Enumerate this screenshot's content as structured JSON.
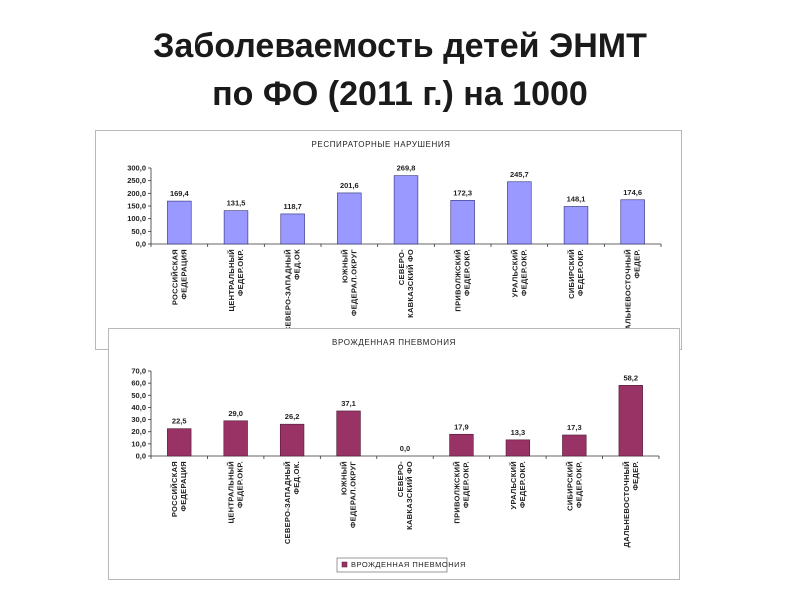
{
  "slide": {
    "title_line1": "Заболеваемость детей ЭНМТ",
    "title_line2": "по ФО  (2011 г.) на 1000"
  },
  "chart_data": [
    {
      "type": "bar",
      "title": "РЕСПИРАТОРНЫЕ НАРУШЕНИЯ",
      "categories": [
        [
          "РОССИЙСКАЯ",
          "ФЕДЕРАЦИЯ"
        ],
        [
          "ЦЕНТРАЛЬНЫЙ",
          "ФЕДЕР.ОКР."
        ],
        [
          "СЕВЕРО-ЗАПАДНЫЙ",
          "ФЕД.ОК"
        ],
        [
          "ЮЖНЫЙ",
          "ФЕДЕРАЛ.ОКРУГ"
        ],
        [
          "СЕВЕРО-",
          "КАВКАЗСКИЙ ФО"
        ],
        [
          "ПРИВОЛЖСКИЙ",
          "ФЕДЕР.ОКР."
        ],
        [
          "УРАЛЬСКИЙ",
          "ФЕДЕР.ОКР."
        ],
        [
          "СИБИРСКИЙ",
          "ФЕДЕР.ОКР."
        ],
        [
          "ДАЛЬНЕВОСТОЧНЫЙ",
          "ФЕДЕР."
        ]
      ],
      "values": [
        169.4,
        131.5,
        118.7,
        201.6,
        269.8,
        172.3,
        245.7,
        148.1,
        174.6
      ],
      "value_labels": [
        "169,4",
        "131,5",
        "118,7",
        "201,6",
        "269,8",
        "172,3",
        "245,7",
        "148,1",
        "174,6"
      ],
      "ylim": [
        0,
        300
      ],
      "yticks": [
        "0,0",
        "50,0",
        "100,0",
        "150,0",
        "200,0",
        "250,0",
        "300,0"
      ],
      "bar_color": "#9999ff",
      "bar_edge": "#2b2b7a",
      "grid": false,
      "legend": null
    },
    {
      "type": "bar",
      "title": "ВРОЖДЕННАЯ ПНЕВМОНИЯ",
      "categories": [
        [
          "РОССИЙСКАЯ",
          "ФЕДЕРАЦИЯ"
        ],
        [
          "ЦЕНТРАЛЬНЫЙ",
          "ФЕДЕР.ОКР."
        ],
        [
          "СЕВЕРО-ЗАПАДНЫЙ",
          "ФЕД.ОК."
        ],
        [
          "ЮЖНЫЙ",
          "ФЕДЕРАЛ.ОКРУГ"
        ],
        [
          "СЕВЕРО-",
          "КАВКАЗСКИЙ ФО"
        ],
        [
          "ПРИВОЛЖСКИЙ",
          "ФЕДЕР.ОКР."
        ],
        [
          "УРАЛЬСКИЙ",
          "ФЕДЕР.ОКР."
        ],
        [
          "СИБИРСКИЙ",
          "ФЕДЕР.ОКР."
        ],
        [
          "ДАЛЬНЕВОСТОЧНЫЙ",
          "ФЕДЕР."
        ]
      ],
      "values": [
        22.5,
        29.0,
        26.2,
        37.1,
        0.0,
        17.9,
        13.3,
        17.3,
        58.2
      ],
      "value_labels": [
        "22,5",
        "29,0",
        "26,2",
        "37,1",
        "0,0",
        "17,9",
        "13,3",
        "17,3",
        "58,2"
      ],
      "ylim": [
        0,
        70
      ],
      "yticks": [
        "0,0",
        "10,0",
        "20,0",
        "30,0",
        "40,0",
        "50,0",
        "60,0",
        "70,0"
      ],
      "bar_color": "#993366",
      "bar_edge": "#4d1a33",
      "grid": false,
      "legend": {
        "label": "ВРОЖДЕННАЯ ПНЕВМОНИЯ",
        "position": "bottom"
      }
    }
  ]
}
